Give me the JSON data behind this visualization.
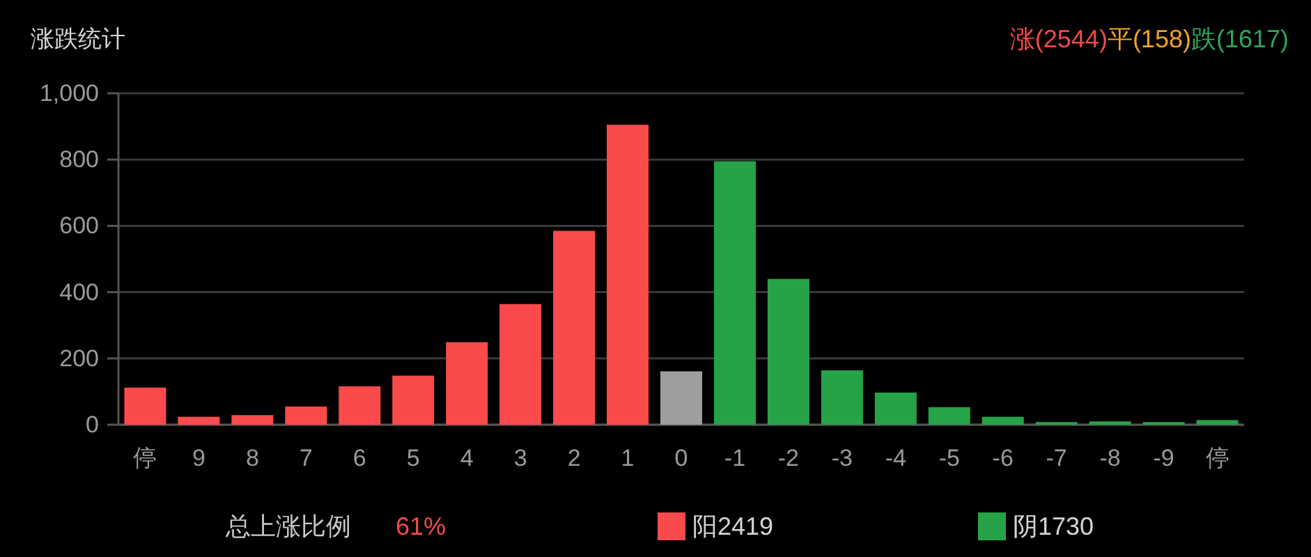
{
  "chart_data": {
    "type": "bar",
    "title": "涨跌统计",
    "categories": [
      "停",
      "9",
      "8",
      "7",
      "6",
      "5",
      "4",
      "3",
      "2",
      "1",
      "0",
      "-1",
      "-2",
      "-3",
      "-4",
      "-5",
      "-6",
      "-7",
      "-8",
      "-9",
      "停"
    ],
    "values": [
      112,
      24,
      29,
      55,
      116,
      148,
      249,
      364,
      585,
      905,
      161,
      795,
      440,
      164,
      97,
      53,
      24,
      8,
      10,
      8,
      14
    ],
    "colors": [
      "#fa4a4c",
      "#fa4a4c",
      "#fa4a4c",
      "#fa4a4c",
      "#fa4a4c",
      "#fa4a4c",
      "#fa4a4c",
      "#fa4a4c",
      "#fa4a4c",
      "#fa4a4c",
      "#9e9e9e",
      "#26a346",
      "#26a346",
      "#26a346",
      "#26a346",
      "#26a346",
      "#26a346",
      "#26a346",
      "#26a346",
      "#26a346",
      "#26a346"
    ],
    "ylim": [
      0,
      1000
    ],
    "yticks": [
      0,
      200,
      400,
      600,
      800,
      {
        "value": 1000,
        "label": "1,000"
      }
    ],
    "grid": "y",
    "annotations": [
      "涨(2544)",
      "平(158)",
      "跌(1617)",
      "总上涨比例",
      "61%",
      "阳2419",
      "阴1730"
    ]
  }
}
